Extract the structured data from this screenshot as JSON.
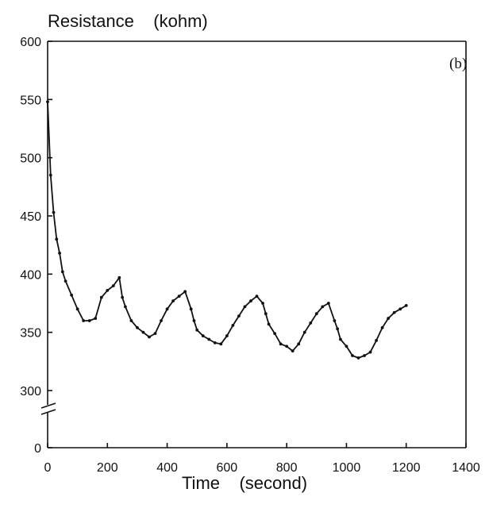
{
  "chart_data": {
    "type": "line",
    "title": "Resistance    (kohm)",
    "xlabel": "Time    (second)",
    "ylabel": "",
    "panel_label": "(b)",
    "xlim": [
      0,
      1400
    ],
    "xticks": [
      0,
      200,
      400,
      600,
      800,
      1000,
      1200,
      1400
    ],
    "xtick_labels": [
      "0",
      "200",
      "400",
      "600",
      "800",
      "1000",
      "1200",
      "1400"
    ],
    "ylim_upper": [
      300,
      600
    ],
    "yticks": [
      0,
      300,
      350,
      400,
      450,
      500,
      550,
      600
    ],
    "ytick_labels": [
      "0",
      "300",
      "350",
      "400",
      "450",
      "500",
      "550",
      "600"
    ],
    "axis_break": true,
    "grid": false,
    "series": [
      {
        "x": [
          0,
          10,
          20,
          30,
          40,
          50,
          60,
          80,
          100,
          120,
          140,
          160,
          180,
          200,
          220,
          240,
          250,
          260,
          280,
          300,
          320,
          340,
          360,
          380,
          400,
          420,
          440,
          460,
          480,
          490,
          500,
          520,
          540,
          560,
          580,
          600,
          620,
          640,
          660,
          680,
          700,
          720,
          730,
          740,
          760,
          780,
          800,
          820,
          840,
          860,
          880,
          900,
          920,
          940,
          960,
          970,
          980,
          1000,
          1020,
          1040,
          1060,
          1080,
          1100,
          1120,
          1140,
          1160,
          1180,
          1200
        ],
        "y": [
          548,
          485,
          453,
          430,
          418,
          402,
          394,
          382,
          370,
          360,
          360,
          362,
          380,
          386,
          390,
          397,
          380,
          372,
          360,
          354,
          350,
          346,
          349,
          360,
          370,
          377,
          381,
          385,
          370,
          360,
          352,
          347,
          344,
          341,
          340,
          347,
          356,
          364,
          372,
          377,
          381,
          375,
          366,
          357,
          349,
          340,
          338,
          334,
          340,
          350,
          358,
          366,
          372,
          375,
          360,
          353,
          344,
          338,
          330,
          328,
          330,
          333,
          343,
          354,
          362,
          367,
          370,
          373
        ]
      }
    ]
  }
}
